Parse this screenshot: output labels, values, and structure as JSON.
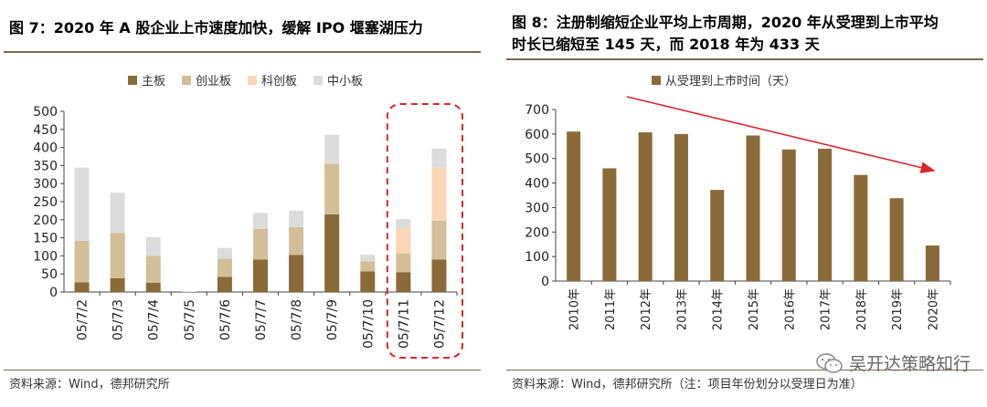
{
  "left": {
    "title": "图 7：2020 年 A 股企业上市速度加快，缓解 IPO 堰塞湖压力",
    "source": "资料来源：Wind，德邦研究所"
  },
  "right": {
    "title_line1": "图 8：注册制缩短企业平均上市周期，2020 年从受理到上市平均",
    "title_line2": "时长已缩短至 145 天，而 2018 年为 433 天",
    "source": "资料来源：Wind，德邦研究所（注：项目年份划分以受理日为准）"
  },
  "watermark": {
    "text": "吴开达策略知行",
    "icon": "wechat-icon"
  },
  "colors": {
    "main": "#8b6a3a",
    "chuangye": "#d2bf98",
    "kechuang": "#f9d6b4",
    "zhongxiao": "#dcdcdc",
    "duration": "#8b6a3a",
    "arrow": "#d9262a",
    "highlight": "#d9262a"
  },
  "chart_data": [
    {
      "type": "bar",
      "stacked": true,
      "title": "图 7：2020 年 A 股企业上市速度加快，缓解 IPO 堰塞湖压力",
      "categories": [
        "05/7/2",
        "05/7/3",
        "05/7/4",
        "05/7/5",
        "05/7/6",
        "05/7/7",
        "05/7/8",
        "05/7/9",
        "05/7/10",
        "05/7/11",
        "05/7/12"
      ],
      "series": [
        {
          "name": "主板",
          "values": [
            27,
            38,
            26,
            0,
            42,
            90,
            103,
            215,
            57,
            55,
            90
          ]
        },
        {
          "name": "创业板",
          "values": [
            115,
            125,
            74,
            0,
            50,
            85,
            77,
            140,
            28,
            52,
            107
          ]
        },
        {
          "name": "科创板",
          "values": [
            0,
            0,
            0,
            0,
            0,
            0,
            0,
            0,
            0,
            71,
            147
          ]
        },
        {
          "name": "中小板",
          "values": [
            202,
            112,
            52,
            2,
            30,
            44,
            45,
            80,
            18,
            24,
            53
          ]
        }
      ],
      "yticks": [
        0,
        50,
        100,
        150,
        200,
        250,
        300,
        350,
        400,
        450,
        500
      ],
      "ylim": [
        0,
        500
      ],
      "legend_position": "top",
      "highlighted_categories": [
        "05/7/11",
        "05/7/12"
      ]
    },
    {
      "type": "bar",
      "title": "图 8：注册制缩短企业平均上市周期，2020 年从受理到上市平均时长已缩短至 145 天，而 2018 年为 433 天",
      "categories": [
        "2010年",
        "2011年",
        "2012年",
        "2013年",
        "2014年",
        "2015年",
        "2016年",
        "2017年",
        "2018年",
        "2019年",
        "2020年"
      ],
      "series": [
        {
          "name": "从受理到上市时间（天）",
          "values": [
            610,
            460,
            607,
            600,
            372,
            594,
            537,
            540,
            433,
            338,
            145
          ]
        }
      ],
      "yticks": [
        0,
        100,
        200,
        300,
        400,
        500,
        600,
        700
      ],
      "ylim": [
        0,
        700
      ],
      "legend_position": "top",
      "annotation": "downward trend arrow"
    }
  ]
}
